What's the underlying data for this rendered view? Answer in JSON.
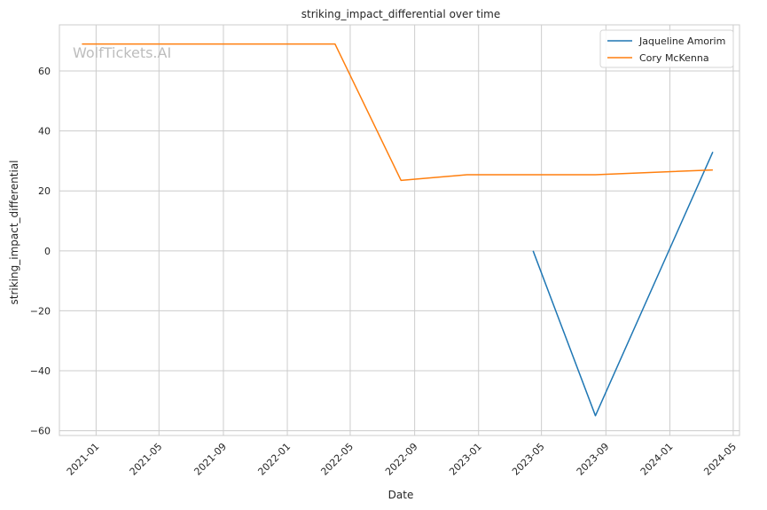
{
  "watermark": "WolfTickets.AI",
  "chart_data": {
    "type": "line",
    "title": "striking_impact_differential over time",
    "xlabel": "Date",
    "ylabel": "striking_impact_differential",
    "xlim": [
      "2020-10-23",
      "2024-05-13"
    ],
    "ylim": [
      -61.6,
      75.4
    ],
    "x_ticks": [
      "2021-01",
      "2021-05",
      "2021-09",
      "2022-01",
      "2022-05",
      "2022-09",
      "2023-01",
      "2023-05",
      "2023-09",
      "2024-01",
      "2024-05"
    ],
    "y_ticks": [
      -60,
      -40,
      -20,
      0,
      20,
      40,
      60
    ],
    "grid": true,
    "legend_position": "top-right",
    "series": [
      {
        "name": "Jaqueline Amorim",
        "color": "#1f77b4",
        "x": [
          "2023-04-15",
          "2023-08-12",
          "2024-03-23"
        ],
        "y": [
          0,
          -55,
          33
        ]
      },
      {
        "name": "Cory McKenna",
        "color": "#ff7f0e",
        "x": [
          "2020-12-05",
          "2022-04-02",
          "2022-08-06",
          "2022-12-10",
          "2023-08-12",
          "2024-03-23"
        ],
        "y": [
          69,
          69,
          23.5,
          25.4,
          25.4,
          27
        ]
      }
    ]
  }
}
